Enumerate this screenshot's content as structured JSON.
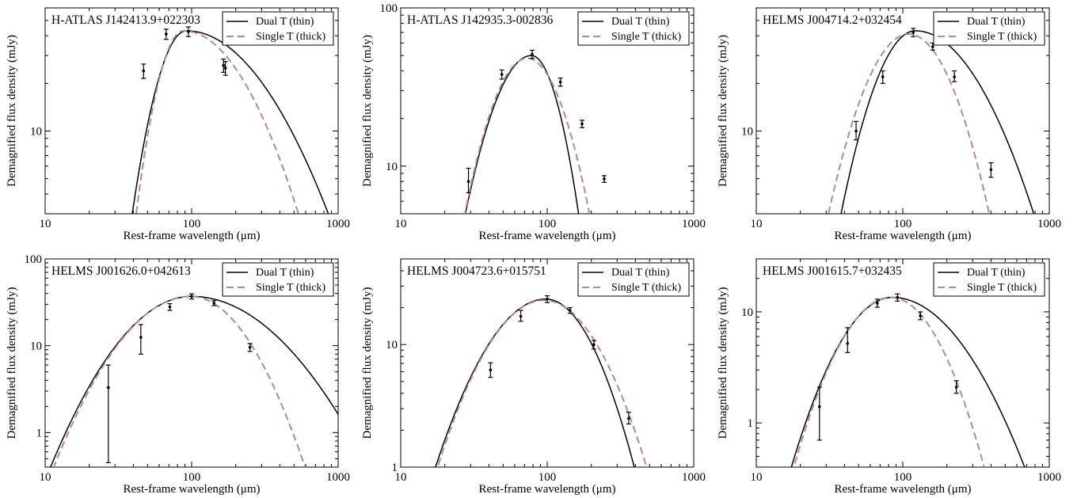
{
  "shared": {
    "xlabel": "Rest-frame wavelength (μm)",
    "ylabel": "Demagnified flux density (mJy)",
    "legend": {
      "thin_label": "Dual T (thin)",
      "thick_label": "Single T (thick)",
      "placement": "top-right"
    },
    "colors": {
      "thin": "#000000",
      "thick": "#b88888"
    }
  },
  "chart_data": [
    {
      "type": "line",
      "title": "H-ATLAS J142413.9+022303",
      "xlim": [
        10,
        1000
      ],
      "ylim": [
        3,
        60
      ],
      "xscale": "log",
      "yscale": "log",
      "xticks": [
        "10",
        "100",
        "1000"
      ],
      "yticks": [
        "10"
      ],
      "points": [
        {
          "x": 47,
          "y": 24,
          "err": [
            21.5,
            26.5
          ]
        },
        {
          "x": 67,
          "y": 41,
          "err": [
            38,
            44
          ]
        },
        {
          "x": 95,
          "y": 42.5,
          "err": [
            39.5,
            45.5
          ]
        },
        {
          "x": 165,
          "y": 26,
          "err": [
            23.5,
            28.5
          ]
        },
        {
          "x": 170,
          "y": 25,
          "err": [
            22.5,
            27.5
          ]
        }
      ],
      "series": [
        {
          "name": "Dual T (thin)",
          "peak_x": 92,
          "peak_y": 43,
          "w": 0.42,
          "wl": 0.16
        },
        {
          "name": "Single T (thick)",
          "peak_x": 88,
          "peak_y": 43,
          "w": 0.34,
          "wl": 0.14
        }
      ]
    },
    {
      "type": "line",
      "title": "H-ATLAS J142935.3-002836",
      "xlim": [
        10,
        1000
      ],
      "ylim": [
        5,
        100
      ],
      "xscale": "log",
      "yscale": "log",
      "xticks": [
        "10",
        "100",
        "1000"
      ],
      "yticks": [
        "10",
        "100"
      ],
      "points": [
        {
          "x": 29,
          "y": 8,
          "err": [
            6.8,
            9.7
          ]
        },
        {
          "x": 49,
          "y": 38,
          "err": [
            35.5,
            40.5
          ]
        },
        {
          "x": 79,
          "y": 51,
          "err": [
            48,
            54
          ]
        },
        {
          "x": 123,
          "y": 34,
          "err": [
            32,
            36
          ]
        },
        {
          "x": 173,
          "y": 18.5,
          "err": [
            17.5,
            19.5
          ]
        },
        {
          "x": 245,
          "y": 8.3,
          "err": [
            7.9,
            8.7
          ]
        }
      ],
      "series": [
        {
          "name": "Dual T (thin)",
          "peak_x": 78,
          "peak_y": 50,
          "w": 0.15,
          "wl": 0.21
        },
        {
          "name": "Single T (thick)",
          "peak_x": 73,
          "peak_y": 48,
          "w": 0.2,
          "wl": 0.2
        }
      ]
    },
    {
      "type": "line",
      "title": "HELMS J004714.2+032454",
      "xlim": [
        10,
        1000
      ],
      "ylim": [
        3,
        60
      ],
      "xscale": "log",
      "yscale": "log",
      "xticks": [
        "10",
        "100",
        "1000"
      ],
      "yticks": [
        "10"
      ],
      "points": [
        {
          "x": 48,
          "y": 10,
          "err": [
            8.8,
            11.5
          ]
        },
        {
          "x": 73,
          "y": 22,
          "err": [
            20,
            24
          ]
        },
        {
          "x": 118,
          "y": 42,
          "err": [
            39.5,
            44.5
          ]
        },
        {
          "x": 160,
          "y": 34,
          "err": [
            32.5,
            36
          ]
        },
        {
          "x": 225,
          "y": 22,
          "err": [
            20.5,
            24
          ]
        },
        {
          "x": 400,
          "y": 5.7,
          "err": [
            5.1,
            6.3
          ]
        }
      ],
      "series": [
        {
          "name": "Dual T (thin)",
          "peak_x": 122,
          "peak_y": 43,
          "w": 0.35,
          "wl": 0.22
        },
        {
          "name": "Single T (thick)",
          "peak_x": 110,
          "peak_y": 41,
          "w": 0.24,
          "wl": 0.24
        }
      ]
    },
    {
      "type": "line",
      "title": "HELMS J001626.0+042613",
      "xlim": [
        10,
        1000
      ],
      "ylim": [
        0.4,
        100
      ],
      "xscale": "log",
      "yscale": "log",
      "xticks": [
        "10",
        "100",
        "1000"
      ],
      "yticks": [
        "1",
        "10",
        "100"
      ],
      "points": [
        {
          "x": 27,
          "y": 3.3,
          "err": [
            0.45,
            6
          ]
        },
        {
          "x": 45,
          "y": 12.5,
          "err": [
            8,
            17.5
          ]
        },
        {
          "x": 71,
          "y": 28,
          "err": [
            25.5,
            30.5
          ]
        },
        {
          "x": 100,
          "y": 37,
          "err": [
            34.5,
            39.5
          ]
        },
        {
          "x": 142,
          "y": 31,
          "err": [
            29,
            33
          ]
        },
        {
          "x": 250,
          "y": 9.6,
          "err": [
            8.6,
            10.6
          ]
        }
      ],
      "series": [
        {
          "name": "Dual T (thin)",
          "peak_x": 100,
          "peak_y": 37,
          "w": 0.4,
          "wl": 0.32
        },
        {
          "name": "Single T (thick)",
          "peak_x": 98,
          "peak_y": 37,
          "w": 0.26,
          "wl": 0.31
        }
      ]
    },
    {
      "type": "line",
      "title": "HELMS J004723.6+015751",
      "xlim": [
        10,
        1000
      ],
      "ylim": [
        1,
        50
      ],
      "xscale": "log",
      "yscale": "log",
      "xticks": [
        "10",
        "100",
        "1000"
      ],
      "yticks": [
        "1",
        "10"
      ],
      "points": [
        {
          "x": 41,
          "y": 6.2,
          "err": [
            5.4,
            7.1
          ]
        },
        {
          "x": 66,
          "y": 17,
          "err": [
            15.5,
            19
          ]
        },
        {
          "x": 100,
          "y": 23.5,
          "err": [
            22,
            25
          ]
        },
        {
          "x": 143,
          "y": 19,
          "err": [
            18,
            20
          ]
        },
        {
          "x": 208,
          "y": 10,
          "err": [
            9.2,
            10.8
          ]
        },
        {
          "x": 360,
          "y": 2.5,
          "err": [
            2.25,
            2.8
          ]
        }
      ],
      "series": [
        {
          "name": "Dual T (thin)",
          "peak_x": 98,
          "peak_y": 23.5,
          "w": 0.24,
          "wl": 0.3
        },
        {
          "name": "Single T (thick)",
          "peak_x": 95,
          "peak_y": 23,
          "w": 0.28,
          "wl": 0.29
        }
      ]
    },
    {
      "type": "line",
      "title": "HELMS J001615.7+032435",
      "xlim": [
        10,
        1000
      ],
      "ylim": [
        0.4,
        30
      ],
      "xscale": "log",
      "yscale": "log",
      "xticks": [
        "10",
        "100",
        "1000"
      ],
      "yticks": [
        "1",
        "10"
      ],
      "points": [
        {
          "x": 27,
          "y": 1.4,
          "err": [
            0.7,
            2.1
          ]
        },
        {
          "x": 42,
          "y": 5.2,
          "err": [
            4.3,
            7.2
          ]
        },
        {
          "x": 67,
          "y": 12,
          "err": [
            11,
            13
          ]
        },
        {
          "x": 92,
          "y": 13.5,
          "err": [
            12.5,
            14.5
          ]
        },
        {
          "x": 132,
          "y": 9.2,
          "err": [
            8.5,
            10
          ]
        },
        {
          "x": 232,
          "y": 2.1,
          "err": [
            1.85,
            2.4
          ]
        }
      ],
      "series": [
        {
          "name": "Dual T (thin)",
          "peak_x": 85,
          "peak_y": 13.5,
          "w": 0.34,
          "wl": 0.26
        },
        {
          "name": "Single T (thick)",
          "peak_x": 83,
          "peak_y": 13.5,
          "w": 0.24,
          "wl": 0.25
        }
      ]
    }
  ]
}
